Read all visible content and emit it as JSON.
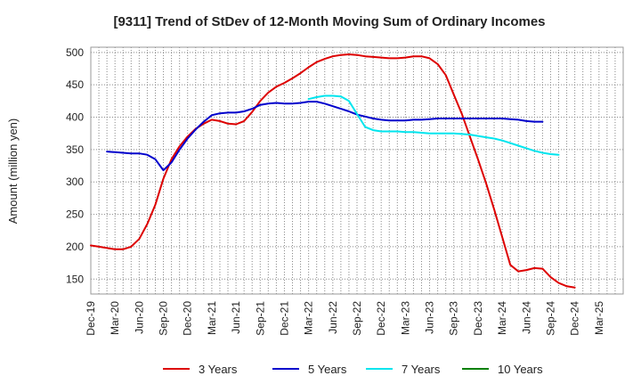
{
  "chart_data": {
    "type": "line",
    "title": "[9311]  Trend of StDev of 12-Month Moving Sum of Ordinary Incomes",
    "xlabel": "",
    "ylabel": "Amount (million yen)",
    "ylim": [
      127,
      508
    ],
    "y_ticks": [
      150,
      200,
      250,
      300,
      350,
      400,
      450,
      500
    ],
    "x_range": [
      0,
      66
    ],
    "x_tick_labels": [
      "Dec-19",
      "Mar-20",
      "Jun-20",
      "Sep-20",
      "Dec-20",
      "Mar-21",
      "Jun-21",
      "Sep-21",
      "Dec-21",
      "Mar-22",
      "Jun-22",
      "Sep-22",
      "Dec-22",
      "Mar-23",
      "Jun-23",
      "Sep-23",
      "Dec-23",
      "Mar-24",
      "Jun-24",
      "Sep-24",
      "Dec-24",
      "Mar-25"
    ],
    "grid": true,
    "legend_position": "bottom",
    "series": [
      {
        "name": "3 Years",
        "color": "#dd0000",
        "start_index": 0,
        "values": [
          202,
          200,
          198,
          196,
          196,
          200,
          212,
          235,
          265,
          305,
          335,
          355,
          370,
          382,
          390,
          396,
          394,
          390,
          389,
          394,
          408,
          425,
          438,
          447,
          453,
          460,
          468,
          477,
          485,
          490,
          494,
          496,
          497,
          496,
          494,
          493,
          492,
          491,
          491,
          492,
          494,
          494,
          491,
          482,
          465,
          435,
          405,
          370,
          335,
          298,
          258,
          215,
          172,
          162,
          164,
          167,
          166,
          153,
          144,
          139,
          137
        ]
      },
      {
        "name": "5 Years",
        "color": "#0000cc",
        "start_index": 2,
        "values": [
          347,
          346,
          345,
          344,
          344,
          342,
          335,
          318,
          330,
          350,
          367,
          381,
          393,
          403,
          406,
          407,
          407,
          409,
          413,
          419,
          421,
          422,
          421,
          421,
          422,
          424,
          424,
          421,
          417,
          413,
          409,
          404,
          401,
          398,
          396,
          395,
          395,
          395,
          396,
          396,
          397,
          398,
          398,
          398,
          398,
          398,
          398,
          398,
          398,
          398,
          397,
          396,
          394,
          393,
          393
        ]
      },
      {
        "name": "7 Years",
        "color": "#00e5ee",
        "start_index": 27,
        "values": [
          428,
          431,
          433,
          433,
          432,
          425,
          405,
          385,
          380,
          378,
          378,
          378,
          377,
          377,
          376,
          375,
          375,
          375,
          375,
          374,
          373,
          371,
          369,
          367,
          364,
          360,
          356,
          352,
          348,
          345,
          343,
          342
        ]
      },
      {
        "name": "10 Years",
        "color": "#008000",
        "start_index": 0,
        "values": []
      }
    ]
  }
}
